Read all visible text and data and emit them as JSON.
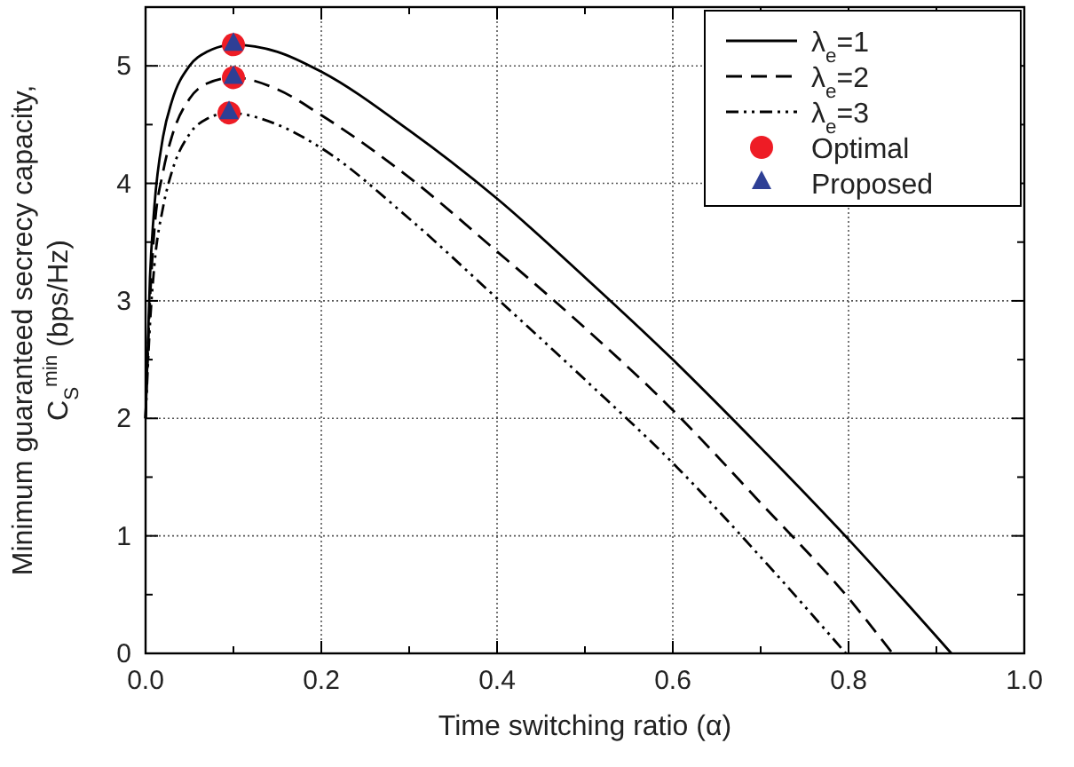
{
  "chart_data": {
    "type": "line",
    "xlabel": "Time switching ratio (α)",
    "ylabel": "Minimum guaranteed secrecy capacity,\nC$_{S}$$^{min}$ (bps/Hz)",
    "xlim": [
      0,
      1
    ],
    "ylim": [
      0,
      5.5
    ],
    "xticks": [
      {
        "value": 0,
        "label": "0.0"
      },
      {
        "value": 0.1,
        "label": null
      },
      {
        "value": 0.2,
        "label": "0.2"
      },
      {
        "value": 0.3,
        "label": null
      },
      {
        "value": 0.4,
        "label": "0.4"
      },
      {
        "value": 0.5,
        "label": null
      },
      {
        "value": 0.6,
        "label": "0.6"
      },
      {
        "value": 0.7,
        "label": null
      },
      {
        "value": 0.8,
        "label": "0.8"
      },
      {
        "value": 0.9,
        "label": null
      },
      {
        "value": 1,
        "label": "1.0"
      }
    ],
    "yticks": [
      0,
      {
        "value": 0.5,
        "label": null
      },
      1,
      {
        "value": 1.5,
        "label": null
      },
      2,
      {
        "value": 2.5,
        "label": null
      },
      3,
      {
        "value": 3.5,
        "label": null
      },
      4,
      {
        "value": 4.5,
        "label": null
      },
      5
    ],
    "grid": true,
    "legend": "top right",
    "series": [
      {
        "name": "λ$_{e}$=1",
        "color": "#000000",
        "line_style": "solid",
        "x": [
          0,
          0.005,
          0.01,
          0.02,
          0.03,
          0.05,
          0.07,
          0.1,
          0.15,
          0.2,
          0.3,
          0.4,
          0.5,
          0.6,
          0.7,
          0.8,
          0.917
        ],
        "values": [
          2,
          3.2,
          3.8,
          4.4,
          4.7,
          5.0,
          5.12,
          5.18,
          5.12,
          4.95,
          4.45,
          3.87,
          3.2,
          2.5,
          1.75,
          0.97,
          0
        ]
      },
      {
        "name": "λ$_{e}$=2",
        "color": "#000000",
        "line_style": "dashed",
        "x": [
          0,
          0.005,
          0.01,
          0.02,
          0.03,
          0.05,
          0.07,
          0.1,
          0.15,
          0.2,
          0.3,
          0.4,
          0.5,
          0.6,
          0.7,
          0.8,
          0.85
        ],
        "values": [
          2,
          3.0,
          3.6,
          4.1,
          4.4,
          4.72,
          4.85,
          4.9,
          4.8,
          4.58,
          4.05,
          3.42,
          2.77,
          2.07,
          1.28,
          0.47,
          0
        ]
      },
      {
        "name": "λ$_{e}$=3",
        "color": "#000000",
        "line_style": "dashdot",
        "x": [
          0,
          0.005,
          0.01,
          0.02,
          0.03,
          0.05,
          0.07,
          0.095,
          0.15,
          0.2,
          0.3,
          0.4,
          0.5,
          0.6,
          0.7,
          0.797
        ],
        "values": [
          2,
          2.8,
          3.3,
          3.8,
          4.1,
          4.42,
          4.55,
          4.6,
          4.5,
          4.3,
          3.7,
          3.02,
          2.33,
          1.62,
          0.82,
          0
        ]
      },
      {
        "name": "Optimal",
        "type": "scatter",
        "color": "#ee1c25",
        "marker": "circle",
        "x": [
          0.1,
          0.1,
          0.095
        ],
        "values": [
          5.18,
          4.9,
          4.6
        ]
      },
      {
        "name": "Proposed",
        "type": "scatter",
        "color": "#2e3f95",
        "marker": "triangle",
        "x": [
          0.1,
          0.1,
          0.095
        ],
        "values": [
          5.18,
          4.9,
          4.6
        ]
      }
    ]
  }
}
